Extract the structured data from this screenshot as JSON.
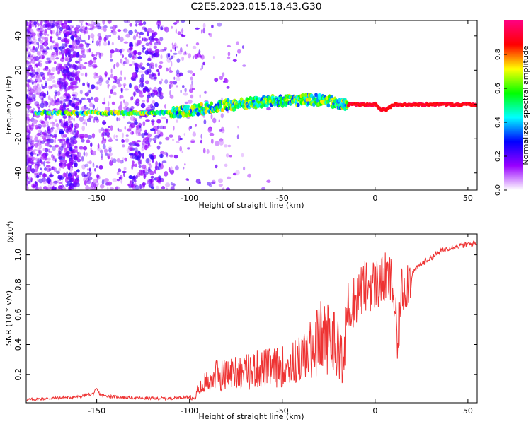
{
  "title": "C2E5.2023.015.18.43.G30",
  "chart_data": [
    {
      "type": "heatmap",
      "xlabel": "Height of straight line (km)",
      "ylabel": "Frequency (Hz)",
      "xlim": [
        -188,
        55
      ],
      "ylim": [
        -50,
        49
      ],
      "xticks": [
        -150,
        -100,
        -50,
        0,
        50
      ],
      "yticks": [
        -40,
        -20,
        0,
        20,
        40
      ],
      "ytick_labels": [
        "-40",
        "-20",
        "0",
        "20",
        "40"
      ],
      "colorbar": {
        "label": "Normalized spectral amplitude",
        "range": [
          0,
          1
        ],
        "ticks": [
          0.0,
          0.2,
          0.4,
          0.6,
          0.8
        ],
        "tick_labels": [
          "0.0",
          "0.2",
          "0.4",
          "0.6",
          "0.8"
        ],
        "colors": [
          "#ffffff",
          "#9900ff",
          "#0000ff",
          "#00ffff",
          "#00ff00",
          "#ffff00",
          "#ff0000",
          "#ff0080"
        ]
      },
      "ridge": {
        "x": [
          -183,
          -175,
          -165,
          -150,
          -140,
          -130,
          -120,
          -113,
          -105,
          -95,
          -85,
          -75,
          -65,
          -55,
          -45,
          -35,
          -25,
          -20,
          -15,
          -10,
          0,
          3,
          6,
          10,
          20,
          30,
          40,
          55
        ],
        "y": [
          -5,
          -5,
          -5,
          -5,
          -5,
          -5,
          -5,
          -5,
          -4,
          -3,
          -1,
          0,
          1,
          2,
          2,
          3,
          2,
          0,
          0,
          0,
          0,
          -3,
          -3,
          0,
          0,
          0,
          0,
          0
        ]
      }
    },
    {
      "type": "line",
      "xlabel": "Height of straight line (km)",
      "ylabel": "SNR (10 * v/v)",
      "yscale_note": "(x10",
      "yscale_exp": "4",
      "yscale_close": ")",
      "xlim": [
        -188,
        55
      ],
      "ylim": [
        0.01,
        1.14
      ],
      "xticks": [
        -150,
        -100,
        -50,
        0,
        50
      ],
      "yticks": [
        0.2,
        0.4,
        0.6,
        0.8,
        1.0
      ],
      "ytick_labels": [
        "0.2",
        "0.4",
        "0.6",
        "0.8",
        "1.0"
      ],
      "series": [
        {
          "color": "#ee3333",
          "x": [
            -188,
            -175,
            -160,
            -152,
            -150,
            -148,
            -140,
            -125,
            -110,
            -100,
            -95,
            -90,
            -85,
            -80,
            -75,
            -70,
            -65,
            -60,
            -55,
            -50,
            -45,
            -40,
            -35,
            -30,
            -25,
            -20,
            -17,
            -15,
            -12,
            -10,
            -6,
            -3,
            0,
            3,
            6,
            9,
            11,
            12,
            14,
            20,
            25,
            30,
            35,
            40,
            45,
            50,
            55
          ],
          "y": [
            0.03,
            0.04,
            0.05,
            0.07,
            0.1,
            0.06,
            0.05,
            0.04,
            0.04,
            0.05,
            0.1,
            0.18,
            0.22,
            0.22,
            0.25,
            0.24,
            0.26,
            0.27,
            0.27,
            0.28,
            0.3,
            0.34,
            0.4,
            0.5,
            0.5,
            0.45,
            0.3,
            0.66,
            0.68,
            0.72,
            0.78,
            0.8,
            0.8,
            0.82,
            0.84,
            0.82,
            0.6,
            0.35,
            0.75,
            0.88,
            0.94,
            0.98,
            1.02,
            1.05,
            1.06,
            1.07,
            1.08
          ]
        }
      ]
    }
  ]
}
